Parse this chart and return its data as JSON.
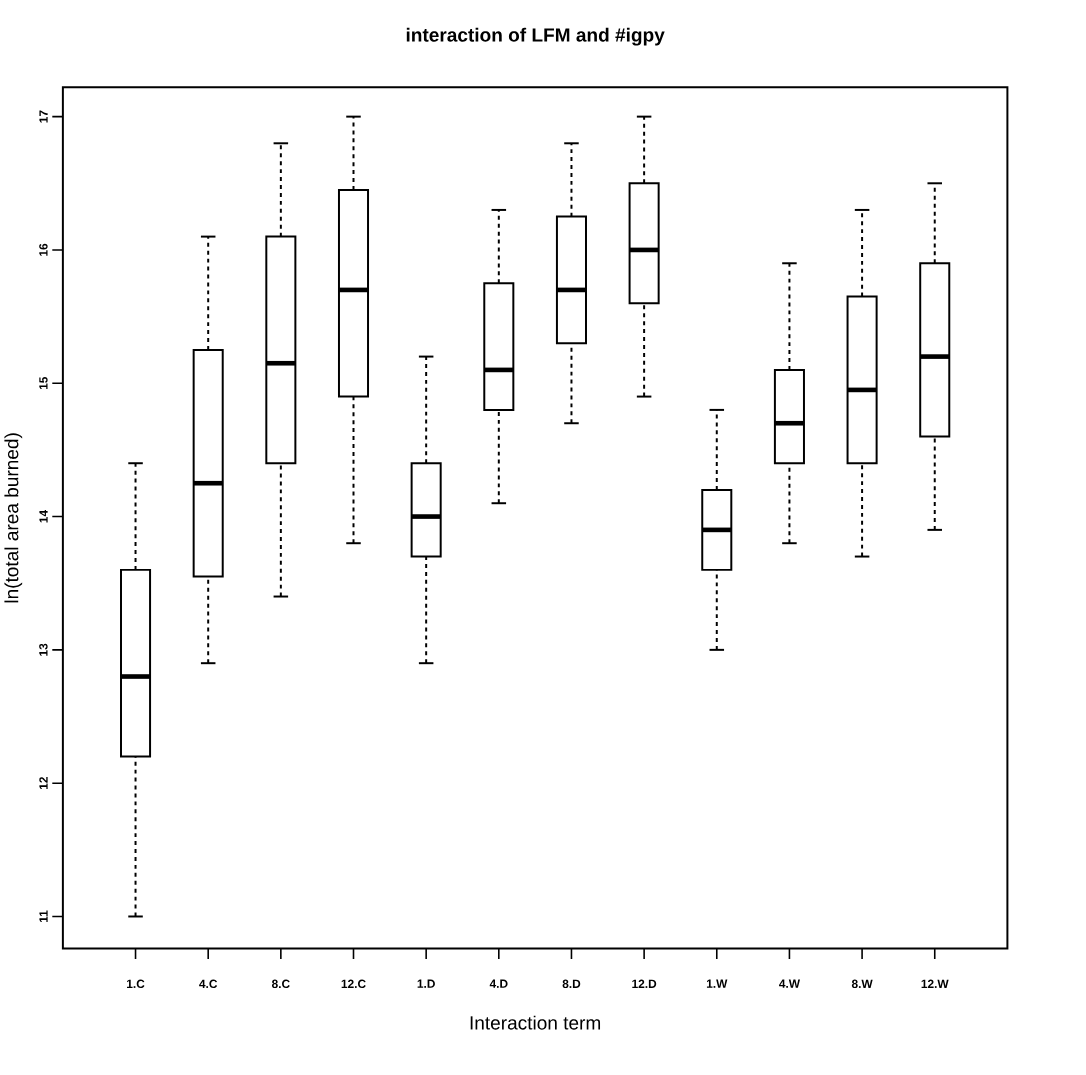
{
  "chart_data": {
    "type": "box",
    "title": "interaction of LFM and #igpy",
    "xlabel": "Interaction term",
    "ylabel": "ln(total area burned)",
    "categories": [
      "1.C",
      "4.C",
      "8.C",
      "12.C",
      "1.D",
      "4.D",
      "8.D",
      "12.D",
      "1.W",
      "4.W",
      "8.W",
      "12.W"
    ],
    "boxes": [
      {
        "low": 11.0,
        "q1": 12.2,
        "median": 12.8,
        "q3": 13.6,
        "high": 14.4
      },
      {
        "low": 12.9,
        "q1": 13.55,
        "median": 14.25,
        "q3": 15.25,
        "high": 16.1
      },
      {
        "low": 13.4,
        "q1": 14.4,
        "median": 15.15,
        "q3": 16.1,
        "high": 16.8
      },
      {
        "low": 13.8,
        "q1": 14.9,
        "median": 15.7,
        "q3": 16.45,
        "high": 17.0
      },
      {
        "low": 12.9,
        "q1": 13.7,
        "median": 14.0,
        "q3": 14.4,
        "high": 15.2
      },
      {
        "low": 14.1,
        "q1": 14.8,
        "median": 15.1,
        "q3": 15.75,
        "high": 16.3
      },
      {
        "low": 14.7,
        "q1": 15.3,
        "median": 15.7,
        "q3": 16.25,
        "high": 16.8
      },
      {
        "low": 14.9,
        "q1": 15.6,
        "median": 16.0,
        "q3": 16.5,
        "high": 17.0
      },
      {
        "low": 13.0,
        "q1": 13.6,
        "median": 13.9,
        "q3": 14.2,
        "high": 14.8
      },
      {
        "low": 13.8,
        "q1": 14.4,
        "median": 14.7,
        "q3": 15.1,
        "high": 15.9
      },
      {
        "low": 13.7,
        "q1": 14.4,
        "median": 14.95,
        "q3": 15.65,
        "high": 16.3
      },
      {
        "low": 13.9,
        "q1": 14.6,
        "median": 15.2,
        "q3": 15.9,
        "high": 16.5
      }
    ],
    "ylim": [
      10.76,
      17.22
    ],
    "yticks": [
      11,
      12,
      13,
      14,
      15,
      16,
      17
    ]
  }
}
